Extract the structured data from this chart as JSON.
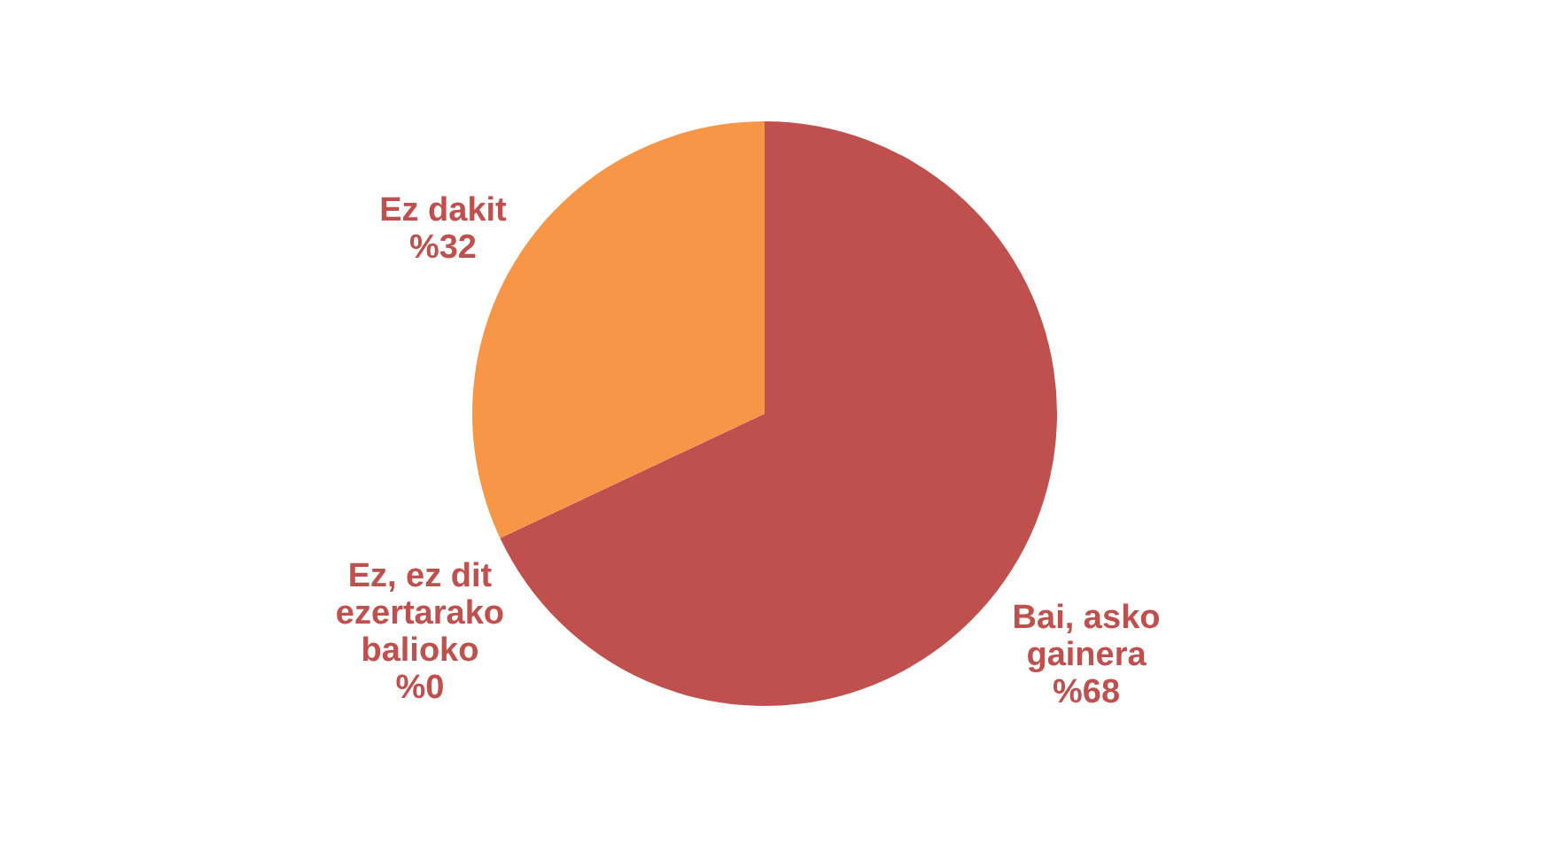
{
  "chart_data": {
    "type": "pie",
    "categories": [
      "Bai, asko gainera",
      "Ez, ez dit ezertarako balioko",
      "Ez dakit"
    ],
    "values": [
      68,
      0,
      32
    ],
    "colors": [
      "#c0504d",
      "#9bbb59",
      "#f79646"
    ],
    "value_labels": [
      "%68",
      "%0",
      "%32"
    ],
    "legend": false
  }
}
